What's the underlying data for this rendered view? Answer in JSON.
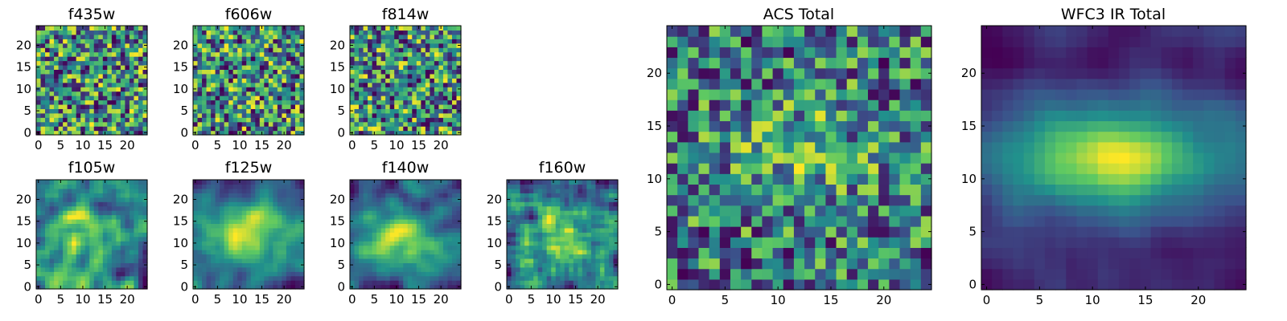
{
  "figure": {
    "background": "#ffffff",
    "colormap": "viridis",
    "colormap_stops": [
      "#440154",
      "#3b528b",
      "#21918c",
      "#5ec962",
      "#fde725"
    ]
  },
  "chart_data": [
    {
      "type": "heatmap",
      "name": "f435w",
      "title": "f435w",
      "grid_size": 25,
      "seed": 11,
      "smoothing": 0,
      "hotspot": null,
      "xlim": [
        0,
        24
      ],
      "ylim": [
        0,
        24
      ],
      "xticks": [
        0,
        5,
        10,
        15,
        20
      ],
      "yticks": [
        0,
        5,
        10,
        15,
        20
      ],
      "xtick_labels": [
        "0",
        "5",
        "10",
        "15",
        "20"
      ],
      "ytick_labels": [
        "0",
        "5",
        "10",
        "15",
        "20"
      ]
    },
    {
      "type": "heatmap",
      "name": "f606w",
      "title": "f606w",
      "grid_size": 25,
      "seed": 23,
      "smoothing": 0,
      "hotspot": null,
      "xlim": [
        0,
        24
      ],
      "ylim": [
        0,
        24
      ],
      "xticks": [
        0,
        5,
        10,
        15,
        20
      ],
      "yticks": [
        0,
        5,
        10,
        15,
        20
      ],
      "xtick_labels": [
        "0",
        "5",
        "10",
        "15",
        "20"
      ],
      "ytick_labels": [
        "0",
        "5",
        "10",
        "15",
        "20"
      ]
    },
    {
      "type": "heatmap",
      "name": "f814w",
      "title": "f814w",
      "grid_size": 25,
      "seed": 37,
      "smoothing": 0,
      "hotspot": null,
      "xlim": [
        0,
        24
      ],
      "ylim": [
        0,
        24
      ],
      "xticks": [
        0,
        5,
        10,
        15,
        20
      ],
      "yticks": [
        0,
        5,
        10,
        15,
        20
      ],
      "xtick_labels": [
        "0",
        "5",
        "10",
        "15",
        "20"
      ],
      "ytick_labels": [
        "0",
        "5",
        "10",
        "15",
        "20"
      ]
    },
    {
      "type": "heatmap",
      "name": "f105w",
      "title": "f105w",
      "grid_size": 25,
      "seed": 41,
      "smoothing": 2,
      "hotspot": {
        "x": 12,
        "y": 12,
        "sx": 7,
        "sy": 5,
        "amp": 0.3
      },
      "xlim": [
        0,
        24
      ],
      "ylim": [
        0,
        24
      ],
      "xticks": [
        0,
        5,
        10,
        15,
        20
      ],
      "yticks": [
        0,
        5,
        10,
        15,
        20
      ],
      "xtick_labels": [
        "0",
        "5",
        "10",
        "15",
        "20"
      ],
      "ytick_labels": [
        "0",
        "5",
        "10",
        "15",
        "20"
      ]
    },
    {
      "type": "heatmap",
      "name": "f125w",
      "title": "f125w",
      "grid_size": 25,
      "seed": 53,
      "smoothing": 2,
      "hotspot": {
        "x": 12,
        "y": 12,
        "sx": 8,
        "sy": 6,
        "amp": 0.5
      },
      "xlim": [
        0,
        24
      ],
      "ylim": [
        0,
        24
      ],
      "xticks": [
        0,
        5,
        10,
        15,
        20
      ],
      "yticks": [
        0,
        5,
        10,
        15,
        20
      ],
      "xtick_labels": [
        "0",
        "5",
        "10",
        "15",
        "20"
      ],
      "ytick_labels": [
        "0",
        "5",
        "10",
        "15",
        "20"
      ]
    },
    {
      "type": "heatmap",
      "name": "f140w",
      "title": "f140w",
      "grid_size": 25,
      "seed": 67,
      "smoothing": 2,
      "hotspot": {
        "x": 11,
        "y": 11,
        "sx": 8,
        "sy": 6,
        "amp": 0.5
      },
      "xlim": [
        0,
        24
      ],
      "ylim": [
        0,
        24
      ],
      "xticks": [
        0,
        5,
        10,
        15,
        20
      ],
      "yticks": [
        0,
        5,
        10,
        15,
        20
      ],
      "xtick_labels": [
        "0",
        "5",
        "10",
        "15",
        "20"
      ],
      "ytick_labels": [
        "0",
        "5",
        "10",
        "15",
        "20"
      ]
    },
    {
      "type": "heatmap",
      "name": "f160w",
      "title": "f160w",
      "grid_size": 25,
      "seed": 79,
      "smoothing": 1,
      "hotspot": {
        "x": 12,
        "y": 12,
        "sx": 7,
        "sy": 5,
        "amp": 0.35
      },
      "xlim": [
        0,
        24
      ],
      "ylim": [
        0,
        24
      ],
      "xticks": [
        0,
        5,
        10,
        15,
        20
      ],
      "yticks": [
        0,
        5,
        10,
        15,
        20
      ],
      "xtick_labels": [
        "0",
        "5",
        "10",
        "15",
        "20"
      ],
      "ytick_labels": [
        "0",
        "5",
        "10",
        "15",
        "20"
      ]
    },
    {
      "type": "heatmap",
      "name": "acs-total",
      "title": "ACS Total",
      "grid_size": 25,
      "seed": 97,
      "smoothing": 0,
      "hotspot": {
        "x": 12,
        "y": 12,
        "sx": 6,
        "sy": 4,
        "amp": 0.2
      },
      "xlim": [
        0,
        24
      ],
      "ylim": [
        0,
        24
      ],
      "xticks": [
        0,
        5,
        10,
        15,
        20
      ],
      "yticks": [
        0,
        5,
        10,
        15,
        20
      ],
      "xtick_labels": [
        "0",
        "5",
        "10",
        "15",
        "20"
      ],
      "ytick_labels": [
        "0",
        "5",
        "10",
        "15",
        "20"
      ]
    },
    {
      "type": "heatmap",
      "name": "wfc3-ir-total",
      "title": "WFC3 IR Total",
      "grid_size": 25,
      "seed": 113,
      "smoothing": 2,
      "hotspot": {
        "x": 12,
        "y": 12,
        "sx": 8,
        "sy": 3.5,
        "amp": 0.75
      },
      "xlim": [
        0,
        24
      ],
      "ylim": [
        0,
        24
      ],
      "xticks": [
        0,
        5,
        10,
        15,
        20
      ],
      "yticks": [
        0,
        5,
        10,
        15,
        20
      ],
      "xtick_labels": [
        "0",
        "5",
        "10",
        "15",
        "20"
      ],
      "ytick_labels": [
        "0",
        "5",
        "10",
        "15",
        "20"
      ]
    }
  ]
}
